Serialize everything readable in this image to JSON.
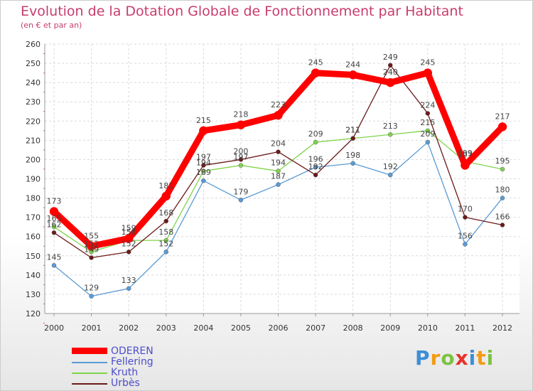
{
  "chart_data": {
    "type": "line",
    "title": "Evolution de la Dotation Globale de Fonctionnement par Habitant",
    "subtitle": "(en € et par an)",
    "x": [
      "2000",
      "2001",
      "2002",
      "2003",
      "2004",
      "2005",
      "2006",
      "2007",
      "2008",
      "2009",
      "2010",
      "2011",
      "2012"
    ],
    "ylim": [
      120,
      260
    ],
    "yticks": [
      120,
      130,
      140,
      150,
      160,
      170,
      180,
      190,
      200,
      210,
      220,
      230,
      240,
      250,
      260
    ],
    "grid": true,
    "legend_position": "bottom-left",
    "series": [
      {
        "name": "Fellering",
        "color": "#5a9bd5",
        "values": [
          145,
          129,
          133,
          152,
          189,
          179,
          187,
          196,
          198,
          192,
          209,
          156,
          180
        ]
      },
      {
        "name": "Kruth",
        "color": "#7fd44a",
        "values": [
          165,
          152,
          158,
          158,
          194,
          197,
          194,
          209,
          211,
          213,
          215,
          199,
          195
        ]
      },
      {
        "name": "Urbès",
        "color": "#6b1a1a",
        "values": [
          162,
          149,
          152,
          168,
          197,
          200,
          204,
          192,
          211,
          249,
          224,
          170,
          166
        ]
      },
      {
        "name": "ODEREN",
        "color": "#ff0000",
        "values": [
          173,
          155,
          159,
          181,
          215,
          218,
          223,
          245,
          244,
          240,
          245,
          197,
          217
        ]
      }
    ]
  },
  "legend": {
    "items": [
      "ODEREN",
      "Fellering",
      "Kruth",
      "Urbès"
    ]
  },
  "brand": {
    "letters": [
      "P",
      "r",
      "o",
      "x",
      "i",
      "t",
      "i"
    ]
  }
}
